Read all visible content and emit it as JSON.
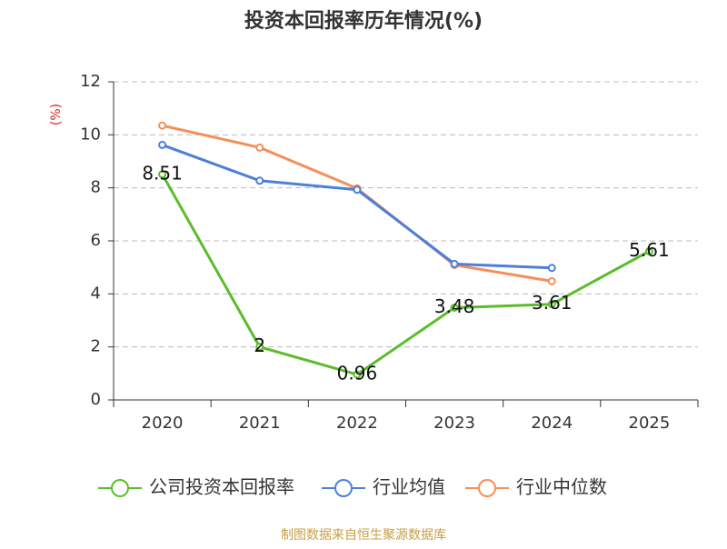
{
  "chart_data": {
    "type": "line",
    "title": "投资本回报率历年情况(%)",
    "y_label": "(%)",
    "source": "制图数据来自恒生聚源数据库",
    "categories": [
      "2020",
      "2021",
      "2022",
      "2023",
      "2024",
      "2025"
    ],
    "series": [
      {
        "name": "公司投资本回报率",
        "color": "#5bbd2b",
        "values": [
          8.51,
          2,
          0.96,
          3.48,
          3.61,
          5.61
        ],
        "show_labels": true
      },
      {
        "name": "行业均值",
        "color": "#4e7fd9",
        "values": [
          9.62,
          8.27,
          7.93,
          5.13,
          4.98,
          null
        ]
      },
      {
        "name": "行业中位数",
        "color": "#f58f5a",
        "values": [
          10.35,
          9.52,
          7.98,
          5.09,
          4.48,
          null
        ]
      }
    ],
    "ylim": [
      0,
      12
    ],
    "yticks": [
      0,
      2,
      4,
      6,
      8,
      10,
      12
    ],
    "grid": true
  }
}
